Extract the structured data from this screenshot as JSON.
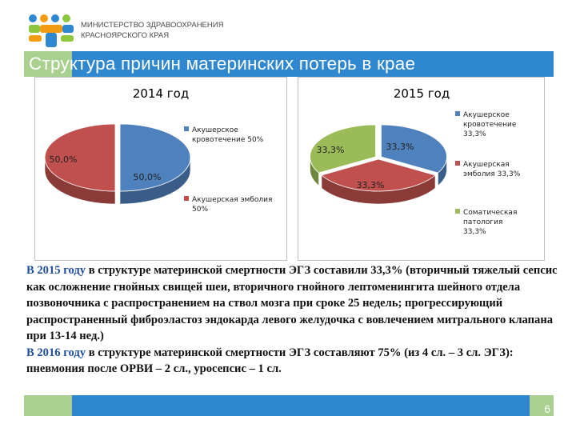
{
  "header": {
    "ministry_line1": "МИНИСТЕРСТВО ЗДРАВООХРАНЕНИЯ",
    "ministry_line2": "КРАСНОЯРСКОГО КРАЯ",
    "title": "Структура причин материнских потерь в крае"
  },
  "colors": {
    "blue": "#4f81bd",
    "red": "#c0504d",
    "green": "#9bbb59",
    "accent": "#2e87cf",
    "accent_green": "#a9d08e",
    "highlight_text": "#1f4e9b"
  },
  "chart_data": [
    {
      "type": "pie",
      "title": "2014 год",
      "slices": [
        {
          "label": "Акушерское кровотечение 50%",
          "value": 50.0,
          "data_label": "50,0%",
          "color": "#4f81bd"
        },
        {
          "label": "Акушерская эмболия 50%",
          "value": 50.0,
          "data_label": "50,0%",
          "color": "#c0504d"
        }
      ],
      "legend": "right"
    },
    {
      "type": "pie",
      "title": "2015 год",
      "slices": [
        {
          "label": "Акушерское кровотечение 33,3%",
          "value": 33.3,
          "data_label": "33,3%",
          "color": "#4f81bd"
        },
        {
          "label": "Акушерская эмболия 33,3%",
          "value": 33.3,
          "data_label": "33,3%",
          "color": "#c0504d"
        },
        {
          "label": "Соматическая патология 33,3%",
          "value": 33.3,
          "data_label": "33,3%",
          "color": "#9bbb59"
        }
      ],
      "legend": "right"
    }
  ],
  "text": {
    "p1_year": "В 2015 году",
    "p1_rest": " в структуре материнской смертности ЭГЗ составили 33,3% (вторичный тяжелый сепсис как осложнение гнойных свищей шеи, вторичного гнойного лептоменингита шейного отдела позвоночника с распространением на ствол мозга при сроке 25 недель; прогрессирующий распространенный фиброэластоз эндокарда левого желудочка с вовлечением митрального клапана при 13-14 нед.)",
    "p2_year": "В 2016 году",
    "p2_rest": " в структуре материнской смертности ЭГЗ составляют 75% (из 4 сл. – 3 сл. ЭГЗ): пневмония после ОРВИ – 2 сл., уросепсис – 1 сл."
  },
  "footer": {
    "page_number": "6"
  }
}
